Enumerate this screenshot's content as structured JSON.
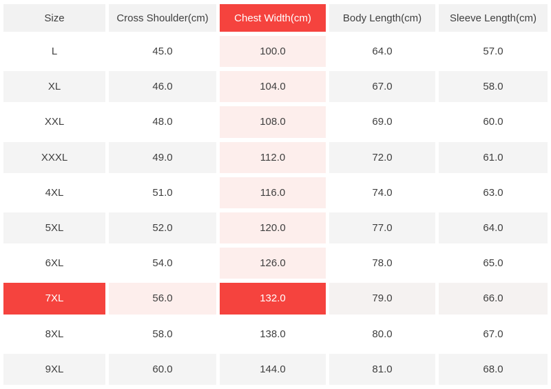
{
  "chart_data": {
    "type": "table",
    "columns": [
      "Size",
      "Cross Shoulder(cm)",
      "Chest Width(cm)",
      "Body Length(cm)",
      "Sleeve Length(cm)"
    ],
    "rows": [
      {
        "size": "L",
        "values": [
          "45.0",
          "100.0",
          "64.0",
          "57.0"
        ]
      },
      {
        "size": "XL",
        "values": [
          "46.0",
          "104.0",
          "67.0",
          "58.0"
        ]
      },
      {
        "size": "XXL",
        "values": [
          "48.0",
          "108.0",
          "69.0",
          "60.0"
        ]
      },
      {
        "size": "XXXL",
        "values": [
          "49.0",
          "112.0",
          "72.0",
          "61.0"
        ]
      },
      {
        "size": "4XL",
        "values": [
          "51.0",
          "116.0",
          "74.0",
          "63.0"
        ]
      },
      {
        "size": "5XL",
        "values": [
          "52.0",
          "120.0",
          "77.0",
          "64.0"
        ]
      },
      {
        "size": "6XL",
        "values": [
          "54.0",
          "126.0",
          "78.0",
          "65.0"
        ]
      },
      {
        "size": "7XL",
        "values": [
          "56.0",
          "132.0",
          "79.0",
          "66.0"
        ],
        "selected": true
      },
      {
        "size": "8XL",
        "values": [
          "58.0",
          "138.0",
          "80.0",
          "67.0"
        ]
      },
      {
        "size": "9XL",
        "values": [
          "60.0",
          "144.0",
          "81.0",
          "68.0"
        ]
      }
    ],
    "highlight": {
      "selected_row": "7XL",
      "selected_column": "Chest Width(cm)",
      "selected_cell_value": "132.0"
    },
    "layout": {
      "unit": "cm",
      "alternating_rows": true,
      "legend_position": "none"
    }
  },
  "colors": {
    "accent_red": "#f5433e",
    "highlight_pink": "#fdeeec",
    "header_gray": "#f2f2f2",
    "row_gray": "#f4f4f4",
    "selected_row_muted": "#f5f2f1",
    "text": "#3f3f3f",
    "text_on_red": "#ffffff",
    "background": "#ffffff"
  }
}
